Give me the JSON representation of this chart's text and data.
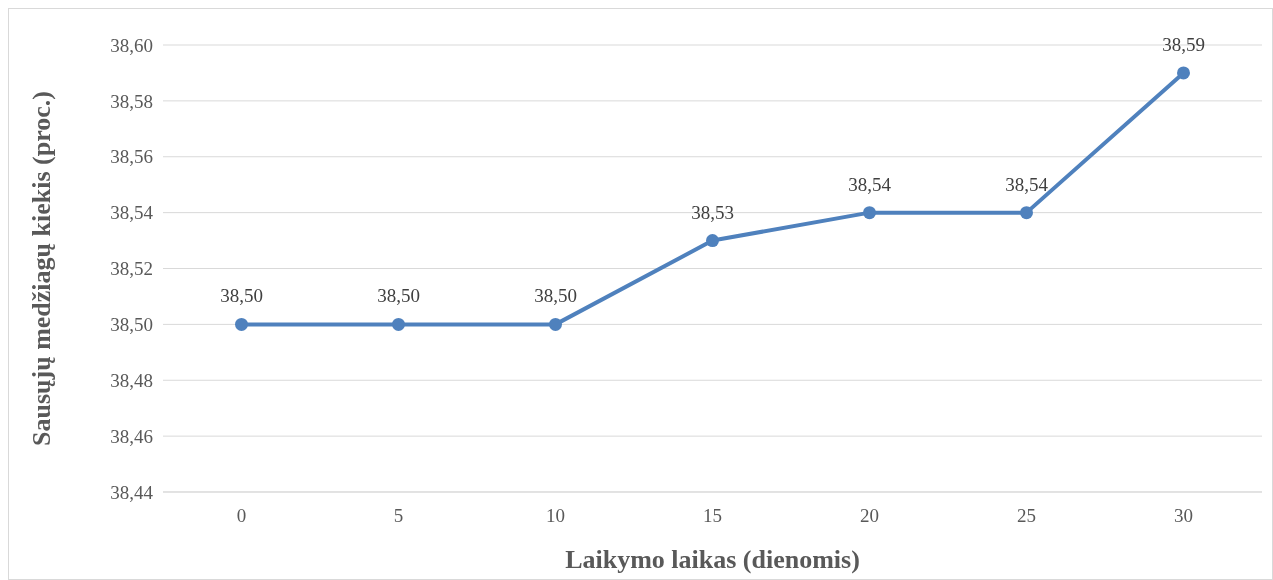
{
  "chart_data": {
    "type": "line",
    "xlabel": "Laikymo laikas (dienomis)",
    "ylabel": "Sausųjų medžiagų kiekis (proc.)",
    "categories": [
      "0",
      "5",
      "10",
      "15",
      "20",
      "25",
      "30"
    ],
    "series": [
      {
        "color": "#4f81bd",
        "values": [
          38.5,
          38.5,
          38.5,
          38.53,
          38.54,
          38.54,
          38.59
        ],
        "value_labels": [
          "38,50",
          "38,50",
          "38,50",
          "38,53",
          "38,54",
          "38,54",
          "38,59"
        ]
      }
    ],
    "ylim": [
      38.44,
      38.6
    ],
    "yticks": [
      {
        "value": 38.44,
        "label": "38,44"
      },
      {
        "value": 38.46,
        "label": "38,46"
      },
      {
        "value": 38.48,
        "label": "38,48"
      },
      {
        "value": 38.5,
        "label": "38,50"
      },
      {
        "value": 38.52,
        "label": "38,52"
      },
      {
        "value": 38.54,
        "label": "38,54"
      },
      {
        "value": 38.56,
        "label": "38,56"
      },
      {
        "value": 38.58,
        "label": "38,58"
      },
      {
        "value": 38.6,
        "label": "38,60"
      }
    ],
    "grid": "y",
    "marker": "circle",
    "line_style": "solid"
  }
}
